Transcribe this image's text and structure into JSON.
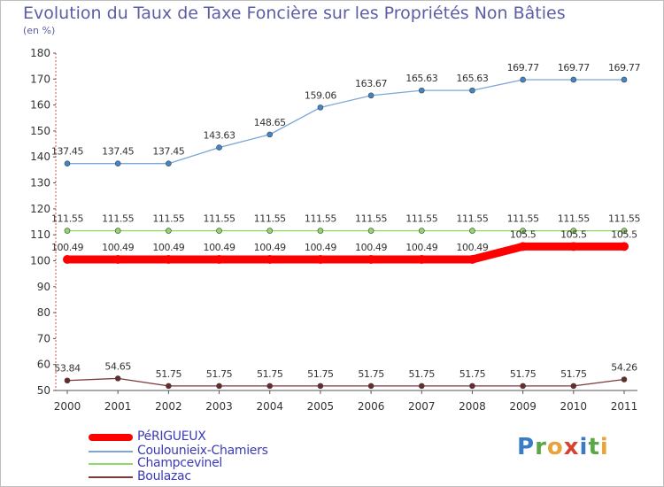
{
  "title": "Evolution du Taux de Taxe Foncière sur les Propriétés Non Bâties",
  "unit": "(en %)",
  "logo": {
    "letters": [
      "P",
      "r",
      "o",
      "x",
      "i",
      "t",
      "i"
    ]
  },
  "chart_data": {
    "type": "line",
    "title": "Evolution du Taux de Taxe Foncière sur les Propriétés Non Bâties",
    "ylabel": "(en %)",
    "xlabel": "",
    "x": [
      "2000",
      "2001",
      "2002",
      "2003",
      "2004",
      "2005",
      "2006",
      "2007",
      "2008",
      "2009",
      "2010",
      "2011"
    ],
    "ylim": [
      50,
      180
    ],
    "yticks": [
      50,
      60,
      70,
      80,
      90,
      100,
      110,
      120,
      130,
      140,
      150,
      160,
      170,
      180
    ],
    "grid": false,
    "legend_position": "bottom-left",
    "series": [
      {
        "name": "PéRIGUEUX",
        "color": "#ff0000",
        "values": [
          100.49,
          100.49,
          100.49,
          100.49,
          100.49,
          100.49,
          100.49,
          100.49,
          100.49,
          105.5,
          105.5,
          105.5
        ],
        "labels": [
          "100.49",
          "100.49",
          "100.49",
          "100.49",
          "100.49",
          "100.49",
          "100.49",
          "100.49",
          "100.49",
          "105.5",
          "105.5",
          "105.5"
        ]
      },
      {
        "name": "Coulounieix-Chamiers",
        "color": "#7aa7d8",
        "values": [
          137.45,
          137.45,
          137.45,
          143.63,
          148.65,
          159.06,
          163.67,
          165.63,
          165.63,
          169.77,
          169.77,
          169.77
        ],
        "labels": [
          "137.45",
          "137.45",
          "137.45",
          "143.63",
          "148.65",
          "159.06",
          "163.67",
          "165.63",
          "165.63",
          "169.77",
          "169.77",
          "169.77"
        ]
      },
      {
        "name": "Champcevinel",
        "color": "#8fd86a",
        "values": [
          111.55,
          111.55,
          111.55,
          111.55,
          111.55,
          111.55,
          111.55,
          111.55,
          111.55,
          111.55,
          111.55,
          111.55
        ],
        "labels": [
          "111.55",
          "111.55",
          "111.55",
          "111.55",
          "111.55",
          "111.55",
          "111.55",
          "111.55",
          "111.55",
          "111.55",
          "111.55",
          "111.55"
        ]
      },
      {
        "name": "Boulazac",
        "color": "#7a3a3a",
        "values": [
          53.84,
          54.65,
          51.75,
          51.75,
          51.75,
          51.75,
          51.75,
          51.75,
          51.75,
          51.75,
          51.75,
          54.26
        ],
        "labels": [
          "53.84",
          "54.65",
          "51.75",
          "51.75",
          "51.75",
          "51.75",
          "51.75",
          "51.75",
          "51.75",
          "51.75",
          "51.75",
          "54.26"
        ]
      }
    ]
  }
}
